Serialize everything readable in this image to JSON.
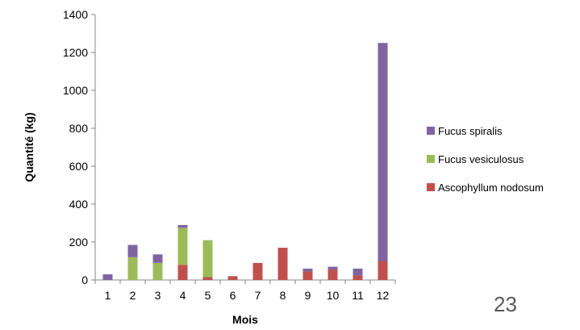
{
  "chart_data": {
    "type": "bar",
    "stacked": true,
    "categories": [
      "1",
      "2",
      "3",
      "4",
      "5",
      "6",
      "7",
      "8",
      "9",
      "10",
      "11",
      "12"
    ],
    "series": [
      {
        "name": "Ascophyllum nodosum",
        "color": "#C0504D",
        "values": [
          0,
          0,
          0,
          80,
          15,
          20,
          90,
          170,
          45,
          55,
          25,
          100
        ]
      },
      {
        "name": "Fucus vesiculosus",
        "color": "#9BBB59",
        "values": [
          0,
          120,
          90,
          195,
          195,
          0,
          0,
          0,
          0,
          0,
          0,
          0
        ]
      },
      {
        "name": "Fucus spiralis",
        "color": "#8064A2",
        "values": [
          30,
          65,
          45,
          15,
          0,
          0,
          0,
          0,
          15,
          15,
          35,
          1150
        ]
      }
    ],
    "xlabel": "Mois",
    "ylabel": "Quantité (kg)",
    "ylim": [
      0,
      1400
    ],
    "yticks": [
      0,
      200,
      400,
      600,
      800,
      1000,
      1200,
      1400
    ],
    "grid": false,
    "legend_position": "right"
  },
  "legend": [
    {
      "label": "Fucus spiralis",
      "color": "#8064A2"
    },
    {
      "label": "Fucus vesiculosus",
      "color": "#9BBB59"
    },
    {
      "label": "Ascophyllum nodosum",
      "color": "#C0504D"
    }
  ],
  "page_number": "23"
}
